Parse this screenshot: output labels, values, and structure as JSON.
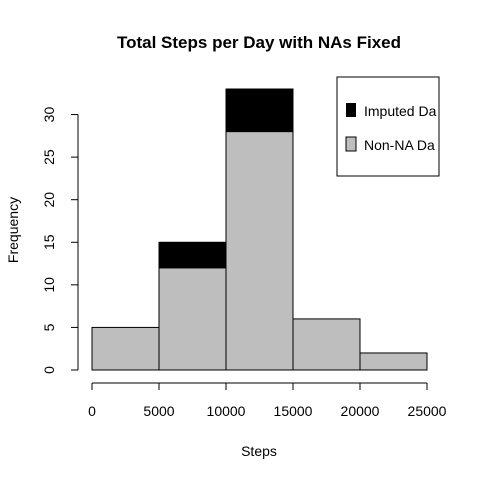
{
  "chart_data": {
    "type": "bar",
    "stacked": true,
    "title": "Total Steps per Day with NAs Fixed",
    "xlabel": "Steps",
    "ylabel": "Frequency",
    "bins": [
      [
        0,
        5000
      ],
      [
        5000,
        10000
      ],
      [
        10000,
        15000
      ],
      [
        15000,
        20000
      ],
      [
        20000,
        25000
      ]
    ],
    "series": [
      {
        "name": "Non-NA Da",
        "color": "#bebebe",
        "values": [
          5,
          12,
          28,
          6,
          2
        ]
      },
      {
        "name": "Imputed Da",
        "color": "#000000",
        "values": [
          0,
          3,
          5,
          0,
          0
        ]
      }
    ],
    "xlim": [
      0,
      25000
    ],
    "ylim": [
      0,
      33
    ],
    "x_ticks": [
      0,
      5000,
      10000,
      15000,
      20000,
      25000
    ],
    "y_ticks": [
      0,
      5,
      10,
      15,
      20,
      25,
      30
    ],
    "legend_position": "top-right",
    "grid": false
  }
}
